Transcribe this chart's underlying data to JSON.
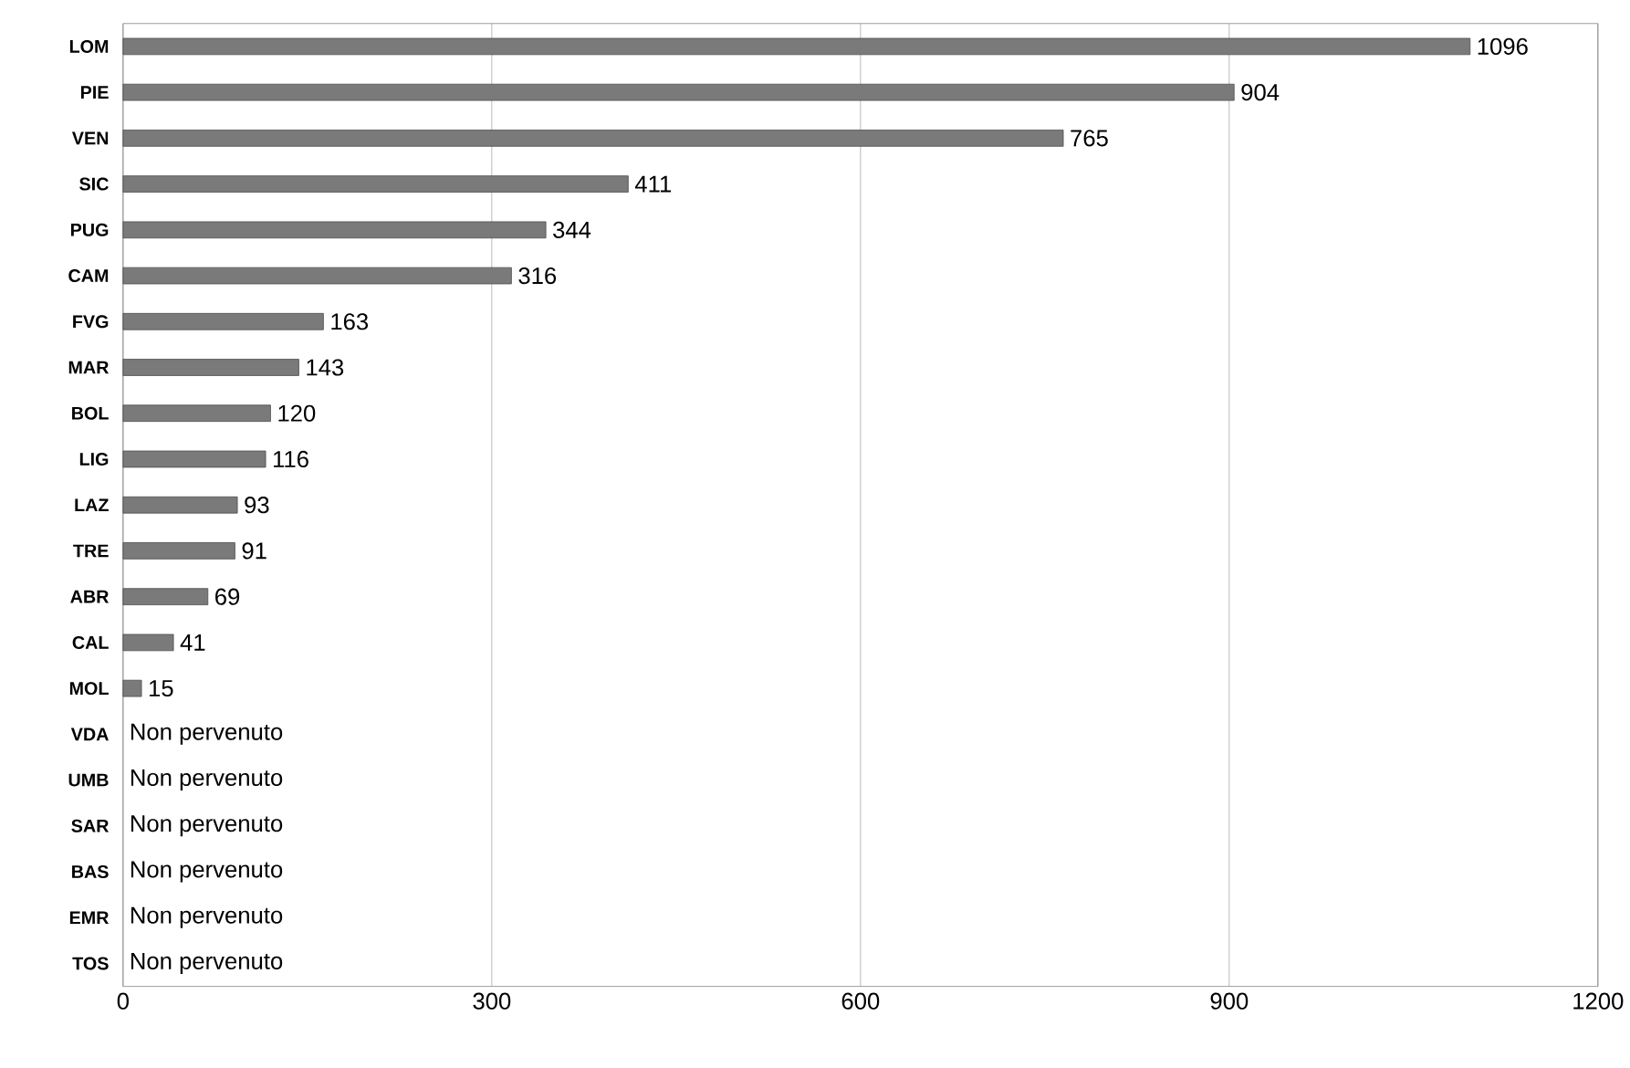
{
  "chart_data": {
    "type": "bar",
    "orientation": "horizontal",
    "categories": [
      "LOM",
      "PIE",
      "VEN",
      "SIC",
      "PUG",
      "CAM",
      "FVG",
      "MAR",
      "BOL",
      "LIG",
      "LAZ",
      "TRE",
      "ABR",
      "CAL",
      "MOL",
      "VDA",
      "UMB",
      "SAR",
      "BAS",
      "EMR",
      "TOS"
    ],
    "values": [
      1096,
      904,
      765,
      411,
      344,
      316,
      163,
      143,
      120,
      116,
      93,
      91,
      69,
      41,
      15,
      null,
      null,
      null,
      null,
      null,
      null
    ],
    "value_labels": [
      "1096",
      "904",
      "765",
      "411",
      "344",
      "316",
      "163",
      "143",
      "120",
      "116",
      "93",
      "91",
      "69",
      "41",
      "15",
      "Non pervenuto",
      "Non pervenuto",
      "Non pervenuto",
      "Non pervenuto",
      "Non pervenuto",
      "Non pervenuto"
    ],
    "color": "#7a7a7a",
    "xlim": [
      0,
      1200
    ],
    "xticks": [
      0,
      300,
      600,
      900,
      1200
    ],
    "grid": "x"
  }
}
